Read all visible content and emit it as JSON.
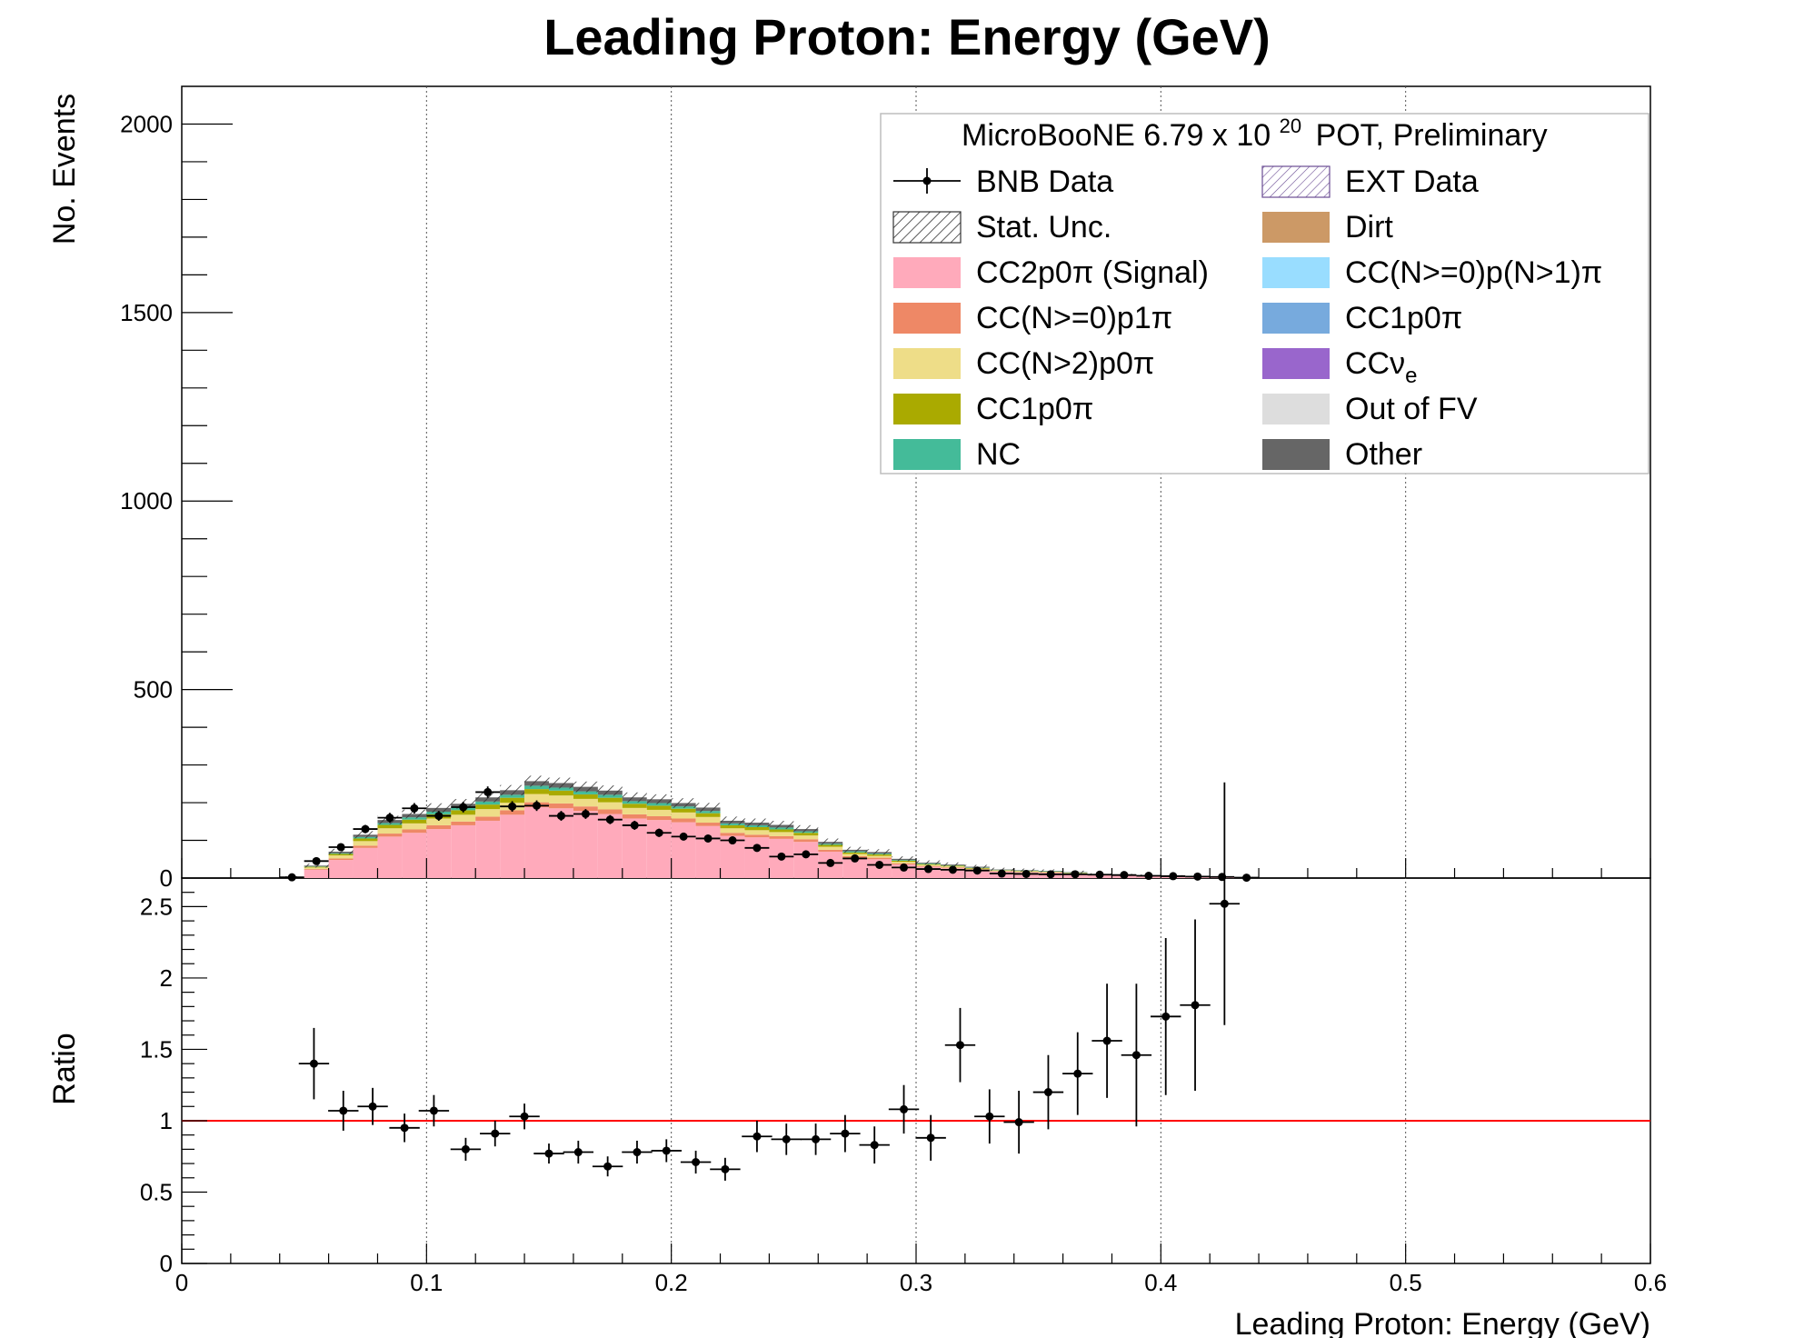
{
  "chart_data": {
    "type": "bar",
    "title": "Leading Proton: Energy (GeV)",
    "xlabel": "Leading Proton: Energy (GeV)",
    "xlim": [
      0,
      0.6
    ],
    "x_ticks": [
      "0",
      "0.1",
      "0.2",
      "0.3",
      "0.4",
      "0.5",
      "0.6"
    ],
    "bin_edges": [
      0.04,
      0.05,
      0.06,
      0.07,
      0.08,
      0.09,
      0.1,
      0.11,
      0.12,
      0.13,
      0.14,
      0.15,
      0.16,
      0.17,
      0.18,
      0.19,
      0.2,
      0.21,
      0.22,
      0.23,
      0.24,
      0.25,
      0.26,
      0.27,
      0.28,
      0.29,
      0.3,
      0.31,
      0.32,
      0.33,
      0.34,
      0.35,
      0.36,
      0.37,
      0.38,
      0.39,
      0.4,
      0.41,
      0.42,
      0.43,
      0.44
    ],
    "top": {
      "ylabel": "No. Events",
      "ylim": [
        0,
        2100
      ],
      "y_ticks": [
        "0",
        "500",
        "1000",
        "1500",
        "2000"
      ],
      "legend": {
        "header": "MicroBooNE 6.79 x 10",
        "header_exp": "20",
        "header_tail": "POT, Preliminary",
        "placement": "top-right",
        "entries": [
          {
            "label": "BNB Data",
            "sub": "",
            "kind": "data",
            "color": "#000000"
          },
          {
            "label": "EXT Data",
            "sub": "",
            "kind": "ext",
            "color": "#6a4c93"
          },
          {
            "label": "Stat. Unc.",
            "sub": "",
            "kind": "hatch",
            "color": "#333333"
          },
          {
            "label": "Dirt",
            "sub": "",
            "kind": "fill",
            "color": "#cc9966"
          },
          {
            "label": "CC2p0π (Signal)",
            "sub": "",
            "kind": "fill",
            "color": "#ffaabb"
          },
          {
            "label": "CC(N>=0)p(N>1)π",
            "sub": "",
            "kind": "fill",
            "color": "#99ddff"
          },
          {
            "label": "CC(N>=0)p1π",
            "sub": "",
            "kind": "fill",
            "color": "#ee8866"
          },
          {
            "label": "CC1p0π",
            "sub": "",
            "kind": "fill",
            "color": "#77aadd"
          },
          {
            "label": "CC(N>2)p0π",
            "sub": "",
            "kind": "fill",
            "color": "#eedd88"
          },
          {
            "label": "CCν",
            "sub": "e",
            "kind": "fill",
            "color": "#9966cc"
          },
          {
            "label": "CC1p0π",
            "sub": "",
            "kind": "fill",
            "color": "#aaaa00"
          },
          {
            "label": "Out of FV",
            "sub": "",
            "kind": "fill",
            "color": "#dddddd"
          },
          {
            "label": "NC",
            "sub": "",
            "kind": "fill",
            "color": "#44bb99"
          },
          {
            "label": "Other",
            "sub": "",
            "kind": "fill",
            "color": "#666666"
          }
        ]
      },
      "stack_order": [
        "CC2p0π (Signal)",
        "CC(N>=0)p1π",
        "CC(N>2)p0π",
        "CC1p0π",
        "NC",
        "Other"
      ],
      "stack_colors": [
        "#ffaabb",
        "#ee8866",
        "#eedd88",
        "#aaaa00",
        "#44bb99",
        "#666666"
      ],
      "stack": [
        [
          2,
          0.2,
          0.3,
          0.2,
          0.1,
          0.2
        ],
        [
          22,
          2,
          4,
          2,
          1,
          2
        ],
        [
          48,
          4,
          8,
          4,
          2,
          4
        ],
        [
          80,
          6,
          12,
          7,
          4,
          6
        ],
        [
          110,
          8,
          14,
          9,
          5,
          8
        ],
        [
          120,
          9,
          16,
          10,
          6,
          9
        ],
        [
          130,
          10,
          18,
          11,
          7,
          10
        ],
        [
          140,
          10,
          18,
          12,
          7,
          10
        ],
        [
          152,
          11,
          20,
          12,
          8,
          11
        ],
        [
          168,
          12,
          20,
          13,
          8,
          12
        ],
        [
          188,
          13,
          22,
          13,
          9,
          12
        ],
        [
          185,
          13,
          21,
          13,
          8,
          12
        ],
        [
          178,
          12,
          20,
          12,
          8,
          12
        ],
        [
          170,
          12,
          19,
          12,
          8,
          11
        ],
        [
          158,
          11,
          17,
          11,
          7,
          10
        ],
        [
          154,
          10,
          17,
          11,
          7,
          10
        ],
        [
          148,
          10,
          16,
          10,
          6,
          9
        ],
        [
          138,
          9,
          15,
          10,
          6,
          9
        ],
        [
          112,
          8,
          12,
          8,
          5,
          7
        ],
        [
          108,
          7,
          12,
          8,
          5,
          7
        ],
        [
          104,
          7,
          11,
          7,
          5,
          7
        ],
        [
          96,
          7,
          10,
          7,
          4,
          6
        ],
        [
          70,
          5,
          8,
          5,
          3,
          5
        ],
        [
          54,
          4,
          6,
          4,
          3,
          4
        ],
        [
          50,
          4,
          5,
          4,
          2,
          4
        ],
        [
          36,
          3,
          4,
          3,
          2,
          3
        ],
        [
          30,
          2,
          3,
          2,
          2,
          2
        ],
        [
          26,
          2,
          3,
          2,
          1,
          2
        ],
        [
          21,
          2,
          2,
          2,
          1,
          2
        ],
        [
          17,
          1,
          2,
          1,
          1,
          1
        ],
        [
          15,
          1,
          2,
          1,
          1,
          1
        ],
        [
          14,
          1,
          1,
          1,
          1,
          1
        ],
        [
          11,
          1,
          1,
          1,
          1,
          1
        ],
        [
          7,
          0.6,
          0.8,
          0.6,
          0.4,
          0.6
        ],
        [
          6,
          0.5,
          0.7,
          0.5,
          0.3,
          0.5
        ],
        [
          5,
          0.4,
          0.6,
          0.4,
          0.3,
          0.4
        ],
        [
          4,
          0.3,
          0.5,
          0.3,
          0.2,
          0.3
        ],
        [
          3,
          0.2,
          0.4,
          0.2,
          0.2,
          0.2
        ],
        [
          2,
          0.2,
          0.2,
          0.2,
          0.1,
          0.2
        ],
        [
          0.5,
          0.1,
          0.1,
          0.1,
          0.1,
          0.1
        ]
      ],
      "data": [
        2,
        45,
        82,
        130,
        160,
        185,
        165,
        188,
        228,
        190,
        192,
        165,
        170,
        155,
        140,
        120,
        110,
        105,
        100,
        80,
        57,
        63,
        40,
        52,
        35,
        28,
        24,
        22,
        20,
        12,
        11,
        10,
        10,
        9,
        8,
        6,
        5,
        4,
        3,
        1
      ],
      "data_x": [
        0.045,
        0.054,
        0.066,
        0.078,
        0.091,
        0.103,
        0.116,
        0.128,
        0.14,
        0.15,
        0.162,
        0.174,
        0.186,
        0.198,
        0.21,
        0.222,
        0.235,
        0.247,
        0.259,
        0.271,
        0.283,
        0.295,
        0.306,
        0.318,
        0.33,
        0.342,
        0.354,
        0.366,
        0.378,
        0.39,
        0.402,
        0.414,
        0.426,
        0.438,
        0.41,
        0.42,
        0.43,
        0.44,
        0.435,
        0.438
      ],
      "data_err": [
        1,
        7,
        9,
        11,
        13,
        14,
        13,
        14,
        15,
        14,
        14,
        13,
        13,
        12,
        12,
        11,
        10,
        10,
        10,
        9,
        8,
        8,
        6,
        7,
        6,
        5,
        5,
        5,
        4,
        3,
        3,
        3,
        3,
        3,
        3,
        2,
        2,
        2,
        2,
        1
      ]
    },
    "ratio": {
      "ylabel": "Ratio",
      "ylim": [
        0,
        2.7
      ],
      "y_ticks": [
        "0",
        "0.5",
        "1",
        "1.5",
        "2",
        "2.5"
      ],
      "reference_line": 1,
      "reference_color": "#ff0000",
      "x": [
        0.054,
        0.066,
        0.078,
        0.091,
        0.103,
        0.116,
        0.128,
        0.14,
        0.15,
        0.162,
        0.174,
        0.186,
        0.198,
        0.21,
        0.222,
        0.235,
        0.247,
        0.259,
        0.271,
        0.283,
        0.295,
        0.306,
        0.318,
        0.33,
        0.342,
        0.354,
        0.366,
        0.378,
        0.39,
        0.402,
        0.414,
        0.426
      ],
      "values": [
        1.4,
        1.07,
        1.1,
        0.95,
        1.07,
        0.8,
        0.91,
        1.03,
        0.77,
        0.78,
        0.68,
        0.78,
        0.79,
        0.71,
        0.66,
        0.89,
        0.87,
        0.87,
        0.91,
        0.83,
        1.08,
        0.88,
        1.53,
        1.03,
        0.99,
        1.2,
        1.33,
        1.56,
        1.46,
        1.73,
        1.81,
        2.52
      ],
      "errors": [
        0.25,
        0.14,
        0.13,
        0.1,
        0.11,
        0.08,
        0.09,
        0.09,
        0.07,
        0.08,
        0.07,
        0.08,
        0.08,
        0.08,
        0.08,
        0.11,
        0.11,
        0.11,
        0.13,
        0.13,
        0.17,
        0.16,
        0.26,
        0.19,
        0.22,
        0.26,
        0.29,
        0.4,
        0.5,
        0.55,
        0.6,
        0.85
      ],
      "bin_half_width": 0.0062
    },
    "grid": {
      "x": true,
      "y": false
    }
  }
}
